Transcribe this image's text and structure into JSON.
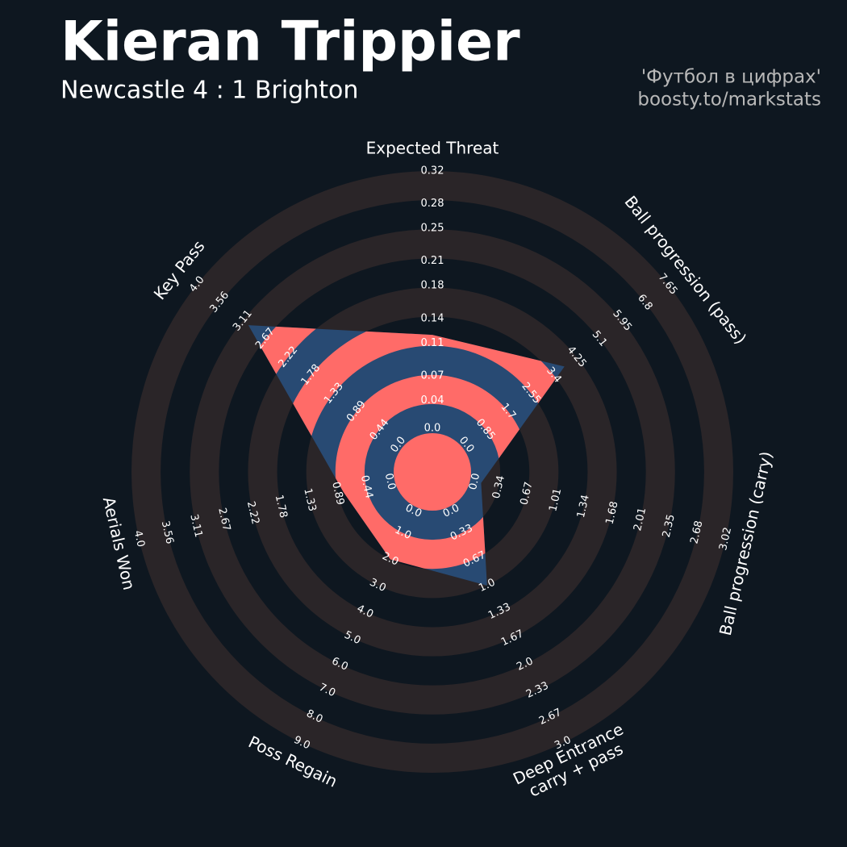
{
  "chart_data": {
    "type": "radar",
    "title": "Kieran Trippier",
    "subtitle": "Newcastle 4 : 1 Brighton",
    "credit": [
      "'Футбол в цифрах'",
      "boosty.to/markstats"
    ],
    "params": [
      "Expected Threat",
      "Ball progression (pass)",
      "Ball progression (carry)",
      "Deep Entrance\ncarry + pass",
      "Poss Regain",
      "Aerials Won",
      "Key Pass"
    ],
    "ranges": [
      [
        0,
        0.32
      ],
      [
        0,
        7.65
      ],
      [
        0,
        3.02
      ],
      [
        0,
        3
      ],
      [
        0,
        9
      ],
      [
        0,
        4
      ],
      [
        0,
        4
      ]
    ],
    "ticks": [
      [
        {
          "value": 0,
          "label": "0.0"
        },
        0.04,
        0.07,
        0.11,
        0.14,
        0.18,
        0.21,
        0.25,
        0.28,
        0.32
      ],
      [
        {
          "value": 0,
          "label": "0.0"
        },
        0.85,
        1.7,
        2.55,
        3.4,
        4.25,
        5.1,
        5.95,
        6.8,
        7.65
      ],
      [
        {
          "value": 0,
          "label": "0.0"
        },
        0.34,
        0.67,
        1.01,
        1.34,
        1.68,
        2.01,
        2.35,
        2.68,
        3.02
      ],
      [
        {
          "value": 0,
          "label": "0.0"
        },
        0.33,
        0.67,
        {
          "value": 1,
          "label": "1.0"
        },
        1.33,
        1.67,
        {
          "value": 2,
          "label": "2.0"
        },
        2.33,
        2.67,
        {
          "value": 3,
          "label": "3.0"
        }
      ],
      [
        {
          "value": 0,
          "label": "0.0"
        },
        {
          "value": 1,
          "label": "1.0"
        },
        {
          "value": 2,
          "label": "2.0"
        },
        {
          "value": 3,
          "label": "3.0"
        },
        {
          "value": 4,
          "label": "4.0"
        },
        {
          "value": 5,
          "label": "5.0"
        },
        {
          "value": 6,
          "label": "6.0"
        },
        {
          "value": 7,
          "label": "7.0"
        },
        {
          "value": 8,
          "label": "8.0"
        },
        {
          "value": 9,
          "label": "9.0"
        }
      ],
      [
        {
          "value": 0,
          "label": "0.0"
        },
        0.44,
        0.89,
        1.33,
        1.78,
        2.22,
        2.67,
        3.11,
        3.56,
        {
          "value": 4,
          "label": "4.0"
        }
      ],
      [
        {
          "value": 0,
          "label": "0.0"
        },
        0.44,
        0.89,
        1.33,
        1.78,
        2.22,
        2.67,
        3.11,
        3.56,
        {
          "value": 4,
          "label": "4.0"
        }
      ]
    ],
    "values": [
      0.12,
      3.8,
      0.13,
      1.0,
      2.0,
      0.8,
      3.0
    ],
    "colors": {
      "background": "#0e1720",
      "ring": "#2a2528",
      "polygon": "#284a73",
      "polygon_alt": "#ff6b68"
    }
  }
}
